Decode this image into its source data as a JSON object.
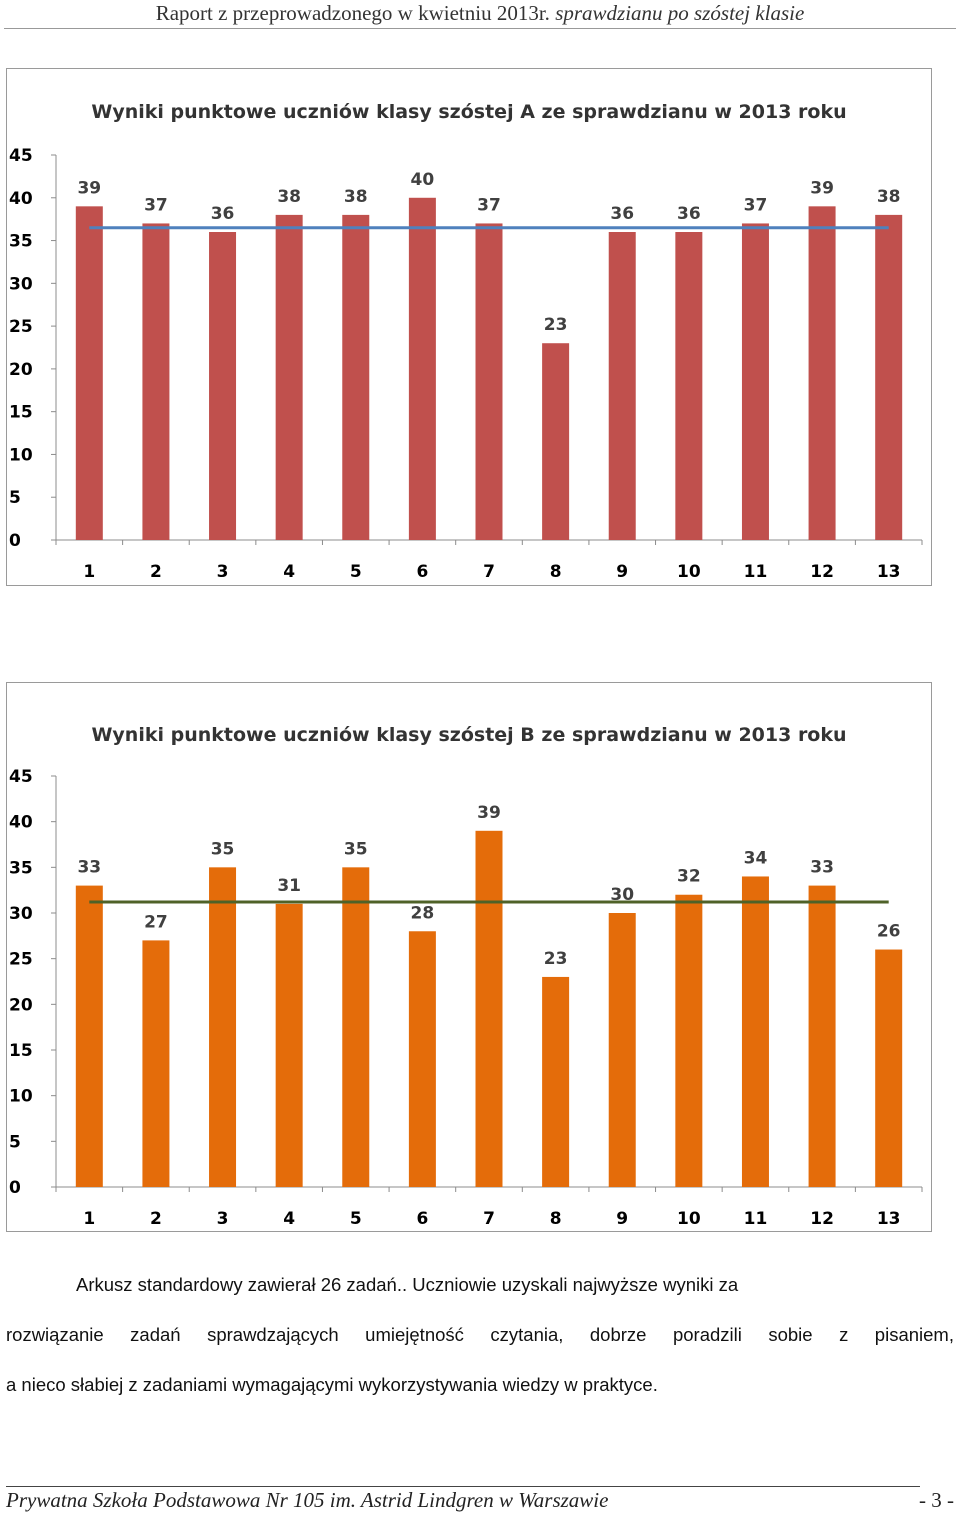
{
  "header": {
    "text_plain": "Raport z przeprowadzonego w kwietniu 2013r. ",
    "text_italic": "sprawdzianu po szóstej klasie"
  },
  "chart_data": [
    {
      "type": "bar",
      "title": "Wyniki punktowe uczniów klasy szóstej A ze sprawdzianu w 2013 roku",
      "categories": [
        "1",
        "2",
        "3",
        "4",
        "5",
        "6",
        "7",
        "8",
        "9",
        "10",
        "11",
        "12",
        "13"
      ],
      "values": [
        39,
        37,
        36,
        38,
        38,
        40,
        37,
        23,
        36,
        36,
        37,
        39,
        38
      ],
      "average_line": 36.5,
      "ylim": [
        0,
        45
      ],
      "yticks": [
        0,
        5,
        10,
        15,
        20,
        25,
        30,
        35,
        40,
        45
      ],
      "bar_color": "#c0504d",
      "line_color": "#4f81bd",
      "grid": false,
      "legend": "none"
    },
    {
      "type": "bar",
      "title": "Wyniki punktowe uczniów klasy szóstej B ze sprawdzianu w 2013 roku",
      "categories": [
        "1",
        "2",
        "3",
        "4",
        "5",
        "6",
        "7",
        "8",
        "9",
        "10",
        "11",
        "12",
        "13"
      ],
      "values": [
        33,
        27,
        35,
        31,
        35,
        28,
        39,
        23,
        30,
        32,
        34,
        33,
        26
      ],
      "average_line": 31.2,
      "ylim": [
        0,
        45
      ],
      "yticks": [
        0,
        5,
        10,
        15,
        20,
        25,
        30,
        35,
        40,
        45
      ],
      "bar_color": "#e46c0a",
      "line_color": "#4f6228",
      "grid": false,
      "legend": "none"
    }
  ],
  "body": {
    "line1": "Arkusz standardowy zawierał 26 zadań.. Uczniowie uzyskali najwyższe wyniki za",
    "line2": "rozwiązanie zadań sprawdzających umiejętność czytania, dobrze poradzili sobie z pisaniem,",
    "line3": "a nieco słabiej z zadaniami wymagającymi wykorzystywania wiedzy w praktyce."
  },
  "footer": {
    "school": "Prywatna Szkoła Podstawowa Nr 105 im. Astrid Lindgren w Warszawie",
    "page": "- 3 -"
  }
}
